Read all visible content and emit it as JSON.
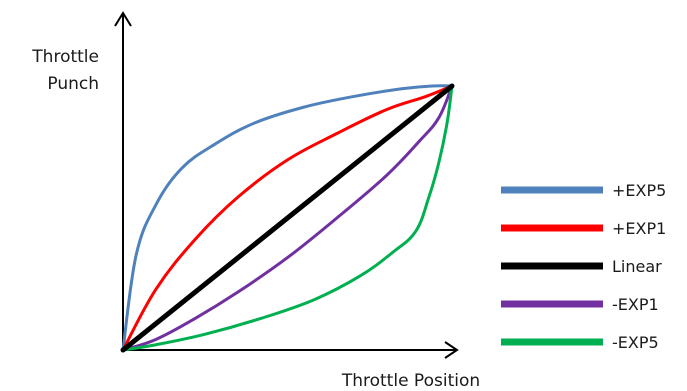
{
  "chart_data": {
    "type": "line",
    "title": "",
    "xlabel": "Throttle Position",
    "ylabel_lines": [
      "Throttle",
      "Punch"
    ],
    "xlim": [
      0,
      1
    ],
    "ylim": [
      0,
      1
    ],
    "grid": false,
    "ticks": false,
    "legend_position": "right",
    "series": [
      {
        "name": "+EXP5",
        "color": "#4f81bd",
        "x": [
          0,
          0.04,
          0.1,
          0.18,
          0.28,
          0.4,
          0.55,
          0.7,
          0.85,
          0.94,
          1.0
        ],
        "y": [
          0,
          0.36,
          0.55,
          0.69,
          0.78,
          0.86,
          0.92,
          0.96,
          0.99,
          1.0,
          1.0
        ]
      },
      {
        "name": "+EXP1",
        "color": "#ff0000",
        "x": [
          0,
          0.1,
          0.22,
          0.35,
          0.5,
          0.65,
          0.8,
          0.92,
          1.0
        ],
        "y": [
          0,
          0.23,
          0.42,
          0.58,
          0.72,
          0.82,
          0.91,
          0.96,
          1.0
        ]
      },
      {
        "name": "Linear",
        "color": "#000000",
        "x": [
          0,
          1
        ],
        "y": [
          0,
          1
        ]
      },
      {
        "name": "-EXP1",
        "color": "#7030a0",
        "x": [
          0,
          0.1,
          0.22,
          0.35,
          0.5,
          0.65,
          0.8,
          0.9,
          0.96,
          1.0
        ],
        "y": [
          0,
          0.04,
          0.12,
          0.22,
          0.35,
          0.5,
          0.66,
          0.79,
          0.88,
          1.0
        ]
      },
      {
        "name": "-EXP5",
        "color": "#00b050",
        "x": [
          0,
          0.1,
          0.25,
          0.42,
          0.58,
          0.72,
          0.82,
          0.89,
          0.93,
          0.96,
          0.985,
          1.0
        ],
        "y": [
          0,
          0.02,
          0.06,
          0.12,
          0.19,
          0.28,
          0.37,
          0.45,
          0.58,
          0.71,
          0.86,
          1.0
        ]
      }
    ]
  }
}
